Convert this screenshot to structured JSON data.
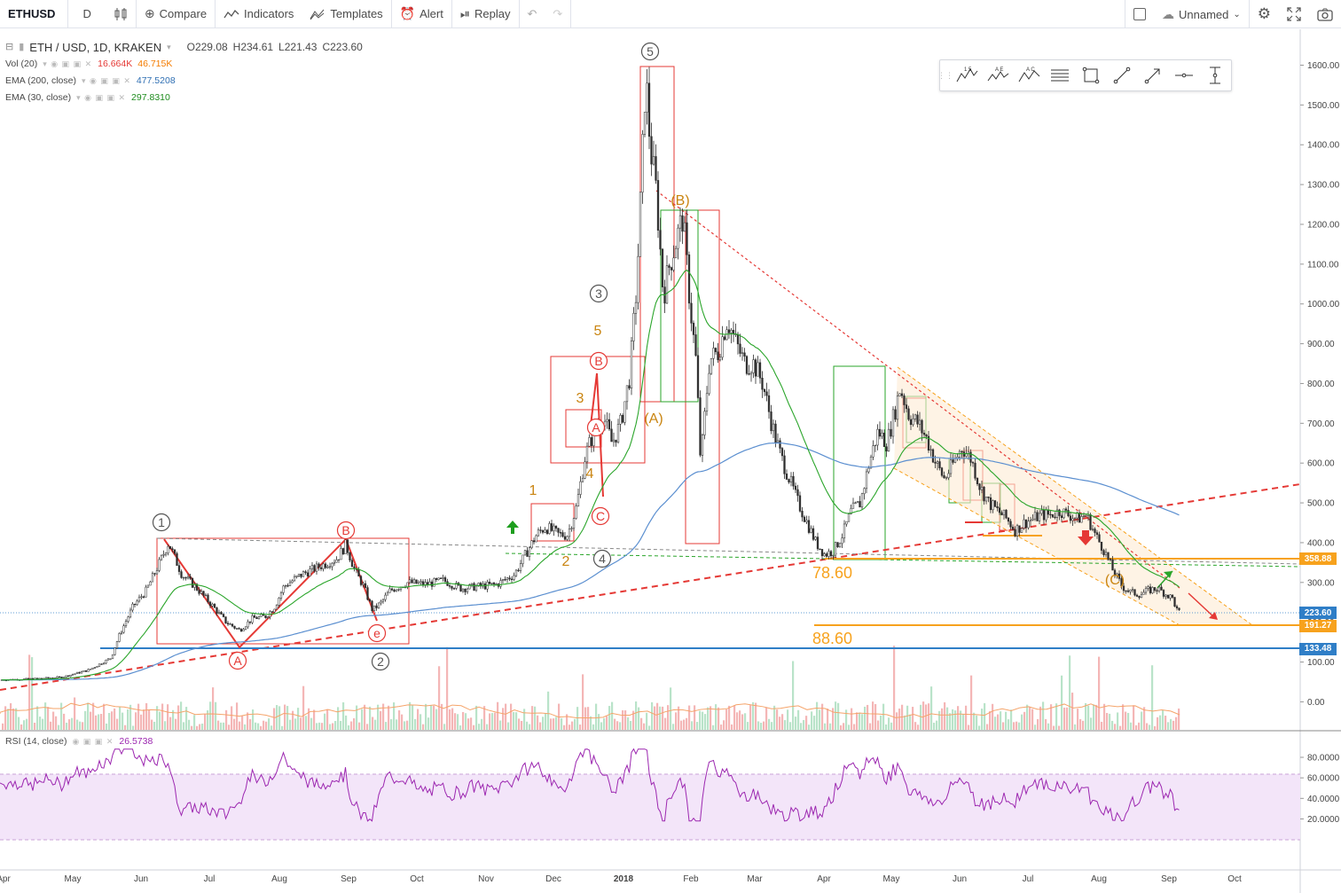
{
  "toolbar": {
    "symbol": "ETHUSD",
    "interval": "D",
    "compare": "Compare",
    "indicators": "Indicators",
    "templates": "Templates",
    "alert": "Alert",
    "replay": "Replay",
    "layout_name": "Unnamed"
  },
  "legend": {
    "title": "ETH / USD, 1D, KRAKEN",
    "ohlc": {
      "o": "O229.08",
      "h": "H234.61",
      "l": "L221.43",
      "c": "C223.60"
    },
    "vol": {
      "label": "Vol (20)",
      "v1": "16.664K",
      "v2": "46.715K"
    },
    "ema200": {
      "label": "EMA (200, close)",
      "value": "477.5208"
    },
    "ema30": {
      "label": "EMA (30, close)",
      "value": "297.8310"
    },
    "rsi": {
      "label": "RSI (14, close)",
      "value": "26.5738"
    }
  },
  "price_axis": [
    "1600.00",
    "1500.00",
    "1400.00",
    "1300.00",
    "1200.00",
    "1100.00",
    "1000.00",
    "900.00",
    "800.00",
    "700.00",
    "600.00",
    "500.00",
    "400.00",
    "300.00",
    "200.00",
    "100.00",
    "0.00"
  ],
  "rsi_axis": [
    "80.0000",
    "60.0000",
    "40.0000",
    "20.0000"
  ],
  "price_tags": [
    {
      "value": "358.88",
      "color": "#f7a21d"
    },
    {
      "value": "223.60",
      "color": "#2f7ec7"
    },
    {
      "value": "191.27",
      "color": "#f7a21d"
    },
    {
      "value": "133.48",
      "color": "#2f7ec7"
    }
  ],
  "time_axis": [
    "Apr",
    "May",
    "Jun",
    "Jul",
    "Aug",
    "Sep",
    "Oct",
    "Nov",
    "Dec",
    "2018",
    "Feb",
    "Mar",
    "Apr",
    "May",
    "Jun",
    "Jul",
    "Aug",
    "Sep",
    "Oct"
  ],
  "annotations": {
    "fib1": "78.60",
    "fib2": "88.60",
    "wave_circled": [
      "1",
      "2",
      "3",
      "4",
      "5"
    ],
    "wave_small": [
      "1",
      "2",
      "3",
      "4",
      "5"
    ],
    "abc_circled": [
      "A",
      "B",
      "C",
      "A",
      "B",
      "e"
    ],
    "abc_paren": [
      "(A)",
      "(B)",
      "(C)"
    ]
  },
  "colors": {
    "ema200": "#5b8fd0",
    "ema30": "#2aa52a",
    "candle": "#2c2c2c",
    "rsi": "#9c27b0",
    "fib": "#f7a21d",
    "support": "#2f7ec7",
    "annot_red": "#e53935"
  },
  "chart_data": {
    "type": "line",
    "x": [
      "2017-04",
      "2017-05",
      "2017-06",
      "2017-07",
      "2017-08",
      "2017-09",
      "2017-10",
      "2017-11",
      "2017-12",
      "2018-01",
      "2018-02",
      "2018-03",
      "2018-04",
      "2018-05",
      "2018-06",
      "2018-07",
      "2018-08",
      "2018-09"
    ],
    "series": [
      {
        "values": [
          50,
          90,
          340,
          230,
          320,
          300,
          300,
          300,
          450,
          1200,
          900,
          600,
          400,
          700,
          550,
          450,
          320,
          224
        ]
      }
    ],
    "ylim": [
      0,
      1650
    ]
  }
}
